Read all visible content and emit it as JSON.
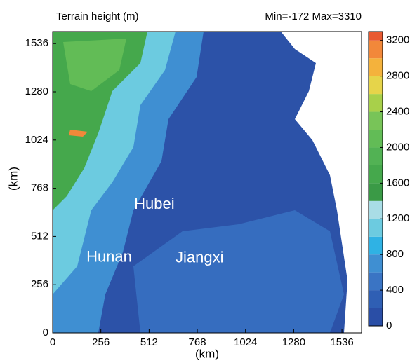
{
  "chart_data": {
    "type": "map",
    "title": "Terrain height (m)",
    "subtitle": "Min=-172 Max=3310",
    "x_label": "(km)",
    "y_label": "(km)",
    "xlim": [
      0,
      1640
    ],
    "ylim": [
      0,
      1600
    ],
    "xticks": [
      0,
      256,
      512,
      768,
      1024,
      1280,
      1536
    ],
    "yticks": [
      0,
      256,
      512,
      768,
      1024,
      1280,
      1536
    ],
    "clim": [
      0,
      3300
    ],
    "cticks": [
      0,
      400,
      800,
      1200,
      1600,
      2000,
      2400,
      2800,
      3200
    ],
    "levels": [
      0,
      200,
      400,
      600,
      800,
      1000,
      1200,
      1400,
      1600,
      1800,
      2000,
      2200,
      2400,
      2600,
      2800,
      3000,
      3200
    ],
    "colors": [
      "#2a4ea6",
      "#2f5fb4",
      "#3a74c4",
      "#3f8fd2",
      "#2fb2e4",
      "#6ccbe0",
      "#a9dde6",
      "#3a9a46",
      "#45a84c",
      "#52b254",
      "#62bc56",
      "#78c458",
      "#a8d04a",
      "#e6d44a",
      "#f4b23c",
      "#f2883a",
      "#e85a32"
    ],
    "annotations": [
      {
        "text": "Hubei",
        "x": 540,
        "y": 680
      },
      {
        "text": "Hunan",
        "x": 300,
        "y": 400
      },
      {
        "text": "Jiangxi",
        "x": 780,
        "y": 395
      }
    ]
  }
}
